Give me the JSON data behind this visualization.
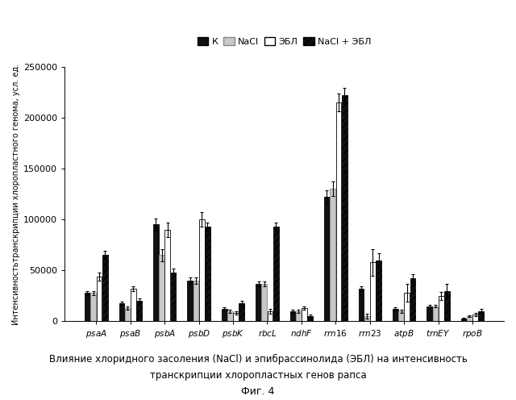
{
  "genes": [
    "psaA",
    "psaB",
    "psbA",
    "psbD",
    "psbK",
    "rbcL",
    "ndhF",
    "rrn16",
    "rrn23",
    "atpB",
    "trnEY",
    "rpoB"
  ],
  "conditions": [
    "К",
    "NaCl",
    "ЭБЛ",
    "NaCl + ЭБЛ"
  ],
  "values": {
    "psaA": [
      28000,
      28000,
      44000,
      65000
    ],
    "psaB": [
      18000,
      13000,
      32000,
      20000
    ],
    "psbA": [
      95000,
      65000,
      90000,
      48000
    ],
    "psbD": [
      40000,
      40000,
      100000,
      93000
    ],
    "psbK": [
      12000,
      10000,
      8000,
      18000
    ],
    "rbcL": [
      37000,
      37000,
      10000,
      93000
    ],
    "ndhF": [
      10000,
      10000,
      13000,
      5000
    ],
    "rrn16": [
      122000,
      130000,
      215000,
      222000
    ],
    "rrn23": [
      32000,
      5000,
      58000,
      60000
    ],
    "atpB": [
      12000,
      10000,
      28000,
      42000
    ],
    "trnEY": [
      15000,
      15000,
      25000,
      30000
    ],
    "rpoB": [
      3000,
      5000,
      7000,
      10000
    ]
  },
  "errors": {
    "psaA": [
      2000,
      2000,
      4000,
      4000
    ],
    "psaB": [
      1500,
      1500,
      2500,
      2500
    ],
    "psbA": [
      6000,
      6000,
      7000,
      4000
    ],
    "psbD": [
      3000,
      3000,
      7000,
      4000
    ],
    "psbK": [
      1500,
      1500,
      1500,
      2500
    ],
    "rbcL": [
      2500,
      2500,
      2500,
      4000
    ],
    "ndhF": [
      1500,
      1500,
      1500,
      1500
    ],
    "rrn16": [
      7000,
      7000,
      9000,
      7000
    ],
    "rrn23": [
      2500,
      2500,
      13000,
      7000
    ],
    "atpB": [
      1500,
      1500,
      9000,
      4000
    ],
    "trnEY": [
      1500,
      1500,
      4000,
      7000
    ],
    "rpoB": [
      800,
      800,
      1500,
      2500
    ]
  },
  "ylim": [
    0,
    250000
  ],
  "yticks": [
    0,
    50000,
    100000,
    150000,
    200000,
    250000
  ],
  "ylabel": "Интенсивностьтранскрипции хлоропластного генома, усл. ед.",
  "caption_line1": "Влияние хлоридного засоления (NaCl) и эпибрассинолида (ЭБЛ) на интенсивность",
  "caption_line2": "транскрипции хлоропластных генов рапса",
  "fig_label": "Фиг. 4",
  "colors": [
    "#111111",
    "#c8c8c8",
    "#ffffff",
    "#111111"
  ],
  "hatches": [
    null,
    null,
    null,
    "////"
  ],
  "edgecolors": [
    "#000000",
    "#888888",
    "#000000",
    "#000000"
  ]
}
